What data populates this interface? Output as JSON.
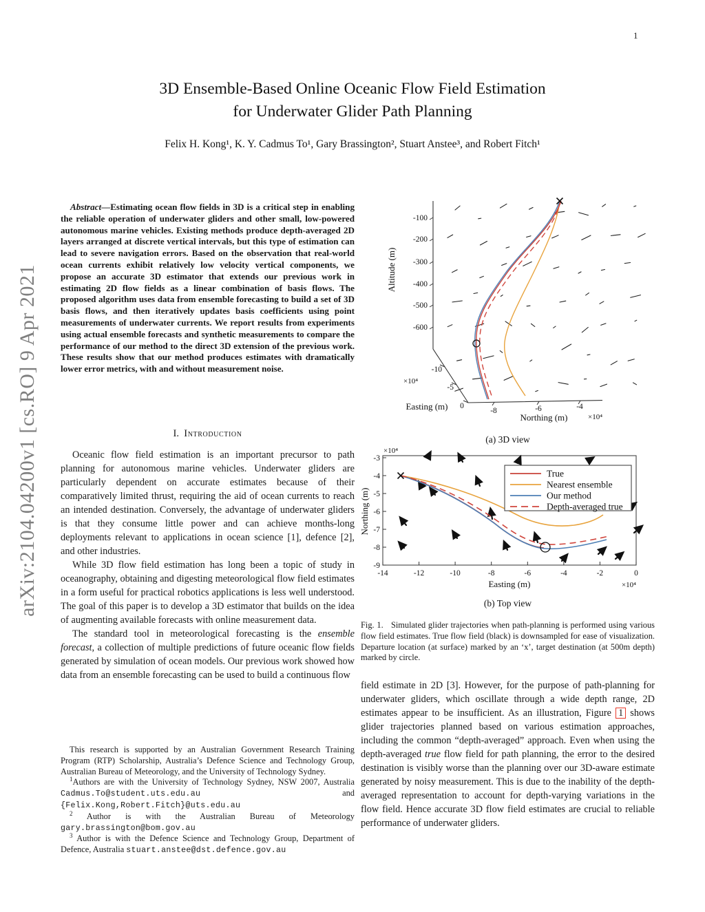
{
  "page_number": "1",
  "arxiv_banner": "arXiv:2104.04200v1  [cs.RO]  9 Apr 2021",
  "title": {
    "line1": "3D Ensemble-Based Online Oceanic Flow Field Estimation",
    "line2": "for Underwater Glider Path Planning"
  },
  "authors": "Felix H. Kong¹, K. Y. Cadmus To¹, Gary Brassington², Stuart Anstee³, and Robert Fitch¹",
  "abstract": {
    "label": "Abstract—",
    "text": "Estimating ocean flow fields in 3D is a critical step in enabling the reliable operation of underwater gliders and other small, low-powered autonomous marine vehicles. Existing methods produce depth-averaged 2D layers arranged at discrete vertical intervals, but this type of estimation can lead to severe navigation errors. Based on the observation that real-world ocean currents exhibit relatively low velocity vertical components, we propose an accurate 3D estimator that extends our previous work in estimating 2D flow fields as a linear combination of basis flows. The proposed algorithm uses data from ensemble forecasting to build a set of 3D basis flows, and then iteratively updates basis coefficients using point measurements of underwater currents. We report results from experiments using actual ensemble forecasts and synthetic measurements to compare the performance of our method to the direct 3D extension of the previous work. These results show that our method produces estimates with dramatically lower error metrics, with and without measurement noise."
  },
  "section1": {
    "number": "I.",
    "title": "Introduction"
  },
  "intro": {
    "p1": "Oceanic flow field estimation is an important precursor to path planning for autonomous marine vehicles. Underwater gliders are particularly dependent on accurate estimates because of their comparatively limited thrust, requiring the aid of ocean currents to reach an intended destination. Conversely, the advantage of underwater gliders is that they consume little power and can achieve months-long deployments relevant to applications in ocean science [1], defence [2], and other industries.",
    "p2": "While 3D flow field estimation has long been a topic of study in oceanography, obtaining and digesting meteorological flow field estimates in a form useful for practical robotics applications is less well understood. The goal of this paper is to develop a 3D estimator that builds on the idea of augmenting available forecasts with online measurement data.",
    "p3_pre": "The standard tool in meteorological forecasting is the ",
    "p3_italic": "ensemble forecast",
    "p3_post": ", a collection of multiple predictions of future oceanic flow fields generated by simulation of ocean models. Our previous work showed how data from an ensemble forecasting can be used to build a continuous flow"
  },
  "footnotes": {
    "f0": "This research is supported by an Australian Government Research Training Program (RTP) Scholarship, Australia’s Defence Science and Technology Group, Australian Bureau of Meteorology, and the University of Technology Sydney.",
    "f1_sup": "1",
    "f1_pre": "Authors are with the University of Technology Sydney, NSW 2007, Australia ",
    "f1_email1": "Cadmus.To@student.uts.edu.au",
    "f1_mid": " and ",
    "f1_email2": "{Felix.Kong,Robert.Fitch}@uts.edu.au",
    "f2_sup": "2",
    "f2_pre": " Author is with the Australian Bureau of Meteorology ",
    "f2_email": "gary.brassington@bom.gov.au",
    "f3_sup": "3",
    "f3_pre": " Author is with the Defence Science and Technology Group, Department of Defence, Australia ",
    "f3_email": "stuart.anstee@dst.defence.gov.au"
  },
  "figure": {
    "caption_label": "Fig. 1.",
    "caption_text": "Simulated glider trajectories when path-planning is performed using various flow field estimates. True flow field (black) is downsampled for ease of visualization. Departure location (at surface) marked by an ‘x’, target destination (at 500m depth) marked by circle.",
    "sub_a": {
      "caption": "(a) 3D view",
      "ylabel": "Altitude (m)",
      "y_ticks": [
        "-100",
        "-200",
        "-300",
        "-400",
        "-500",
        "-600"
      ],
      "easting_label": "Easting (m)",
      "easting_ticks": [
        "-10",
        "-5",
        "0"
      ],
      "easting_exp": "×10⁴",
      "northing_label": "Northing (m)",
      "northing_ticks": [
        "-8",
        "-6",
        "-4"
      ],
      "northing_exp": "×10⁴"
    },
    "sub_b": {
      "caption": "(b) Top view",
      "xlabel": "Easting (m)",
      "ylabel": "Northing (m)",
      "x_exp": "×10⁴",
      "y_exp": "×10⁴",
      "x_ticks": [
        "-14",
        "-12",
        "-10",
        "-8",
        "-6",
        "-4",
        "-2",
        "0"
      ],
      "y_ticks": [
        "-3",
        "-4",
        "-5",
        "-6",
        "-7",
        "-8",
        "-9"
      ],
      "legend": [
        {
          "label": "True"
        },
        {
          "label": "Nearest ensemble"
        },
        {
          "label": "Our method"
        },
        {
          "label": "Depth-averaged true"
        }
      ]
    },
    "colors": {
      "true": "#c8423a",
      "nearest_ensemble": "#e8a33d",
      "our_method": "#4d7fb5",
      "depth_averaged_true": "#d0453c",
      "quiver": "#111111",
      "figref_box": "#e8392b",
      "arxiv_gray": "#7f7f7f"
    }
  },
  "chart_data": [
    {
      "type": "line",
      "title": "(a) 3D view",
      "xlabel": "Northing (m)",
      "ylabel2": "Easting (m)",
      "zlabel": "Altitude (m)",
      "x_range_e4": [
        -9,
        -3.5
      ],
      "easting_range_e4": [
        -10,
        0
      ],
      "altitude_range_m": [
        -700,
        0
      ],
      "altitude_ticks": [
        -100,
        -200,
        -300,
        -400,
        -500,
        -600
      ],
      "annotations": [
        "departure marked by x at surface",
        "destination circle at 500m depth",
        "black quiver field = downsampled true flow"
      ],
      "series": [
        {
          "name": "True",
          "style": "solid red"
        },
        {
          "name": "Nearest ensemble",
          "style": "solid orange"
        },
        {
          "name": "Our method",
          "style": "solid blue"
        },
        {
          "name": "Depth-averaged true",
          "style": "dashed red"
        }
      ]
    },
    {
      "type": "line",
      "title": "(b) Top view",
      "xlabel": "Easting (m)",
      "ylabel": "Northing (m)",
      "xlim_e4": [
        -14,
        0
      ],
      "ylim_e4": [
        -9,
        -3
      ],
      "legend_position": "upper right",
      "markers": {
        "departure_x": [
          -13,
          -4
        ],
        "destination_circle": [
          -5,
          -8
        ]
      },
      "series": [
        {
          "name": "True",
          "x": [
            -13,
            -12,
            -11,
            -10,
            -9,
            -8,
            -7,
            -6,
            -5
          ],
          "y": [
            -4,
            -4.3,
            -4.9,
            -5.5,
            -6.1,
            -6.7,
            -7.3,
            -7.8,
            -8.0
          ]
        },
        {
          "name": "Nearest ensemble",
          "x": [
            -13,
            -11,
            -9,
            -7,
            -5,
            -4,
            -3,
            -2,
            -1.8
          ],
          "y": [
            -4,
            -4.6,
            -5.4,
            -6.3,
            -6.8,
            -6.9,
            -6.8,
            -6.5,
            -6.2
          ]
        },
        {
          "name": "Our method",
          "x": [
            -13,
            -11,
            -9,
            -7,
            -5,
            -4,
            -3,
            -2,
            -1.6
          ],
          "y": [
            -4,
            -4.8,
            -5.6,
            -6.8,
            -8.0,
            -8.1,
            -8.0,
            -7.8,
            -7.6
          ]
        },
        {
          "name": "Depth-averaged true",
          "x": [
            -13,
            -11,
            -9,
            -7,
            -5,
            -3,
            -1.5
          ],
          "y": [
            -4,
            -4.7,
            -5.5,
            -6.6,
            -7.9,
            -7.8,
            -7.4
          ]
        }
      ]
    }
  ],
  "body2": {
    "p1_pre": "field estimate in 2D [3]. However, for the purpose of path-planning for underwater gliders, which oscillate through a wide depth range, 2D estimates appear to be insufficient. As an illustration, Figure ",
    "fig_ref": "1",
    "p1_mid": " shows glider trajectories planned based on various estimation approaches, including the common “depth-averaged” approach. Even when using the depth-averaged ",
    "p1_italic": "true",
    "p1_post": " flow field for path planning, the error to the desired destination is visibly worse than the planning over our 3D-aware estimate generated by noisy measurement. This is due to the inability of the depth-averaged representation to account for depth-varying variations in the flow field. Hence accurate 3D flow field estimates are crucial to reliable performance of underwater gliders."
  }
}
